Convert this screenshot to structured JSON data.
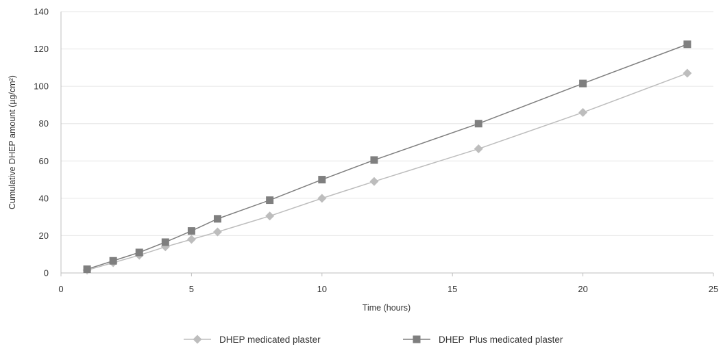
{
  "chart_data": {
    "type": "line",
    "title": "",
    "xlabel": "Time (hours)",
    "ylabel": "Cumulative DHEP amount (µg/cm²)",
    "xlim": [
      0,
      25
    ],
    "ylim": [
      0,
      140
    ],
    "xticks": [
      0,
      5,
      10,
      15,
      20,
      25
    ],
    "yticks": [
      0,
      20,
      40,
      60,
      80,
      100,
      120,
      140
    ],
    "grid": "horizontal",
    "legend_position": "bottom",
    "x": [
      1,
      2,
      3,
      4,
      5,
      6,
      8,
      10,
      12,
      16,
      20,
      24
    ],
    "series": [
      {
        "name": "DHEP medicated plaster",
        "marker": "diamond",
        "color": "#bdbdbd",
        "values": [
          1.5,
          5.5,
          9.5,
          14,
          18,
          22,
          30.5,
          40,
          49,
          66.5,
          86,
          107
        ]
      },
      {
        "name": "DHEP  Plus medicated plaster",
        "marker": "square",
        "color": "#7f7f7f",
        "values": [
          2,
          6.5,
          11,
          16.5,
          22.5,
          29,
          39,
          50,
          60.5,
          80,
          101.5,
          122.5
        ]
      }
    ]
  },
  "logo": {
    "color": "#d9534f"
  }
}
